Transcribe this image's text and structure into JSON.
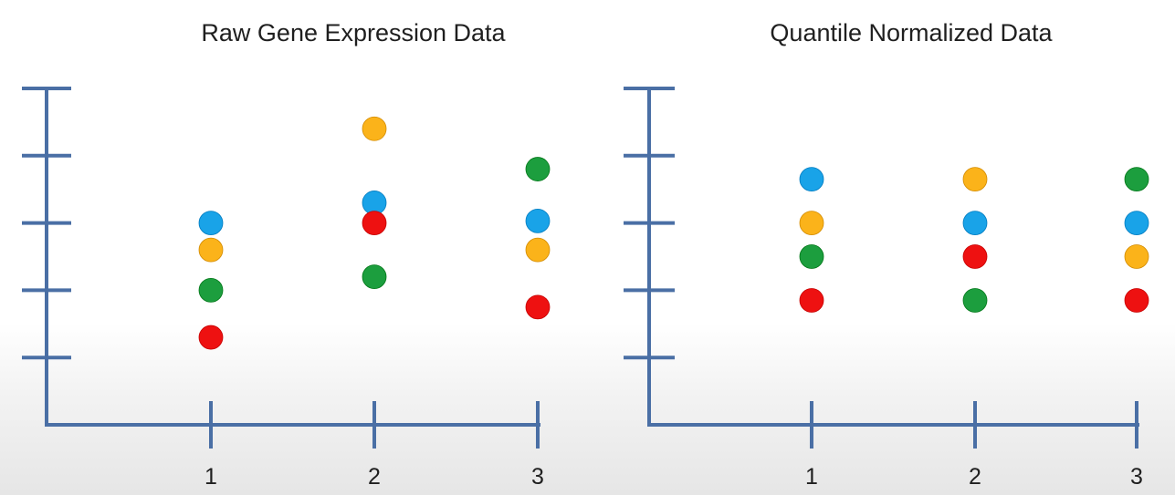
{
  "colors": {
    "axis": "#4a6fa5",
    "blue": "#19a3e8",
    "orange": "#fbb31a",
    "green": "#1c9e3e",
    "red": "#ee1111"
  },
  "chart_data": [
    {
      "type": "scatter",
      "title": "Raw Gene Expression Data",
      "xlabel": "",
      "ylabel": "",
      "categories": [
        "1",
        "2",
        "3"
      ],
      "xlim": [
        0,
        3
      ],
      "ylim": [
        0,
        5
      ],
      "y_ticks": [
        1,
        2,
        3,
        4,
        5
      ],
      "y_tick_labels_shown": false,
      "grid": false,
      "legend": "none",
      "series": [
        {
          "color": "blue",
          "values": [
            3.0,
            3.3,
            3.03
          ]
        },
        {
          "color": "orange",
          "values": [
            2.6,
            4.4,
            2.6
          ]
        },
        {
          "color": "green",
          "values": [
            2.0,
            2.2,
            3.8
          ]
        },
        {
          "color": "red",
          "values": [
            1.3,
            3.0,
            1.75
          ]
        }
      ]
    },
    {
      "type": "scatter",
      "title": "Quantile Normalized Data",
      "xlabel": "",
      "ylabel": "",
      "categories": [
        "1",
        "2",
        "3"
      ],
      "xlim": [
        0,
        3
      ],
      "ylim": [
        0,
        5
      ],
      "y_ticks": [
        1,
        2,
        3,
        4,
        5
      ],
      "y_tick_labels_shown": false,
      "grid": false,
      "legend": "none",
      "series": [
        {
          "color": "blue",
          "values": [
            3.65,
            3.0,
            3.0
          ]
        },
        {
          "color": "orange",
          "values": [
            3.0,
            3.65,
            2.5
          ]
        },
        {
          "color": "green",
          "values": [
            2.5,
            1.85,
            3.65
          ]
        },
        {
          "color": "red",
          "values": [
            1.85,
            2.5,
            1.85
          ]
        }
      ]
    }
  ]
}
